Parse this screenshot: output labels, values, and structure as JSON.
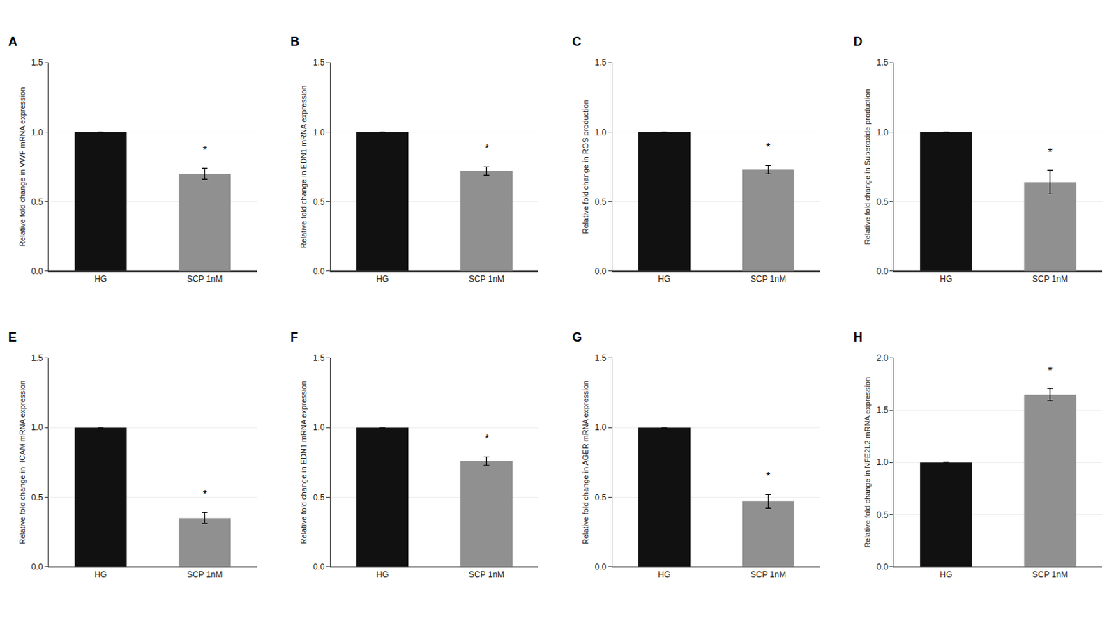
{
  "chart_data": [
    {
      "type": "bar",
      "title": "A",
      "y_label": "Relative fold change in VWF mRNA expression",
      "categories": [
        "HG",
        "SCP 1nM"
      ],
      "values": [
        1.0,
        0.7
      ],
      "errors": [
        0.0,
        0.04
      ],
      "colors": [
        "#111111",
        "#909090"
      ],
      "ylim": [
        0,
        1.5
      ],
      "yticks": [
        {
          "value": 0.0,
          "label": "0.0"
        },
        0.5,
        {
          "value": 1.0,
          "label": "1.0"
        },
        1.5
      ],
      "annotations": [
        {
          "text": "*",
          "category": "SCP 1nM"
        }
      ]
    },
    {
      "type": "bar",
      "title": "B",
      "y_label": "Relative fold change in EDN1 mRNA expression",
      "categories": [
        "HG",
        "SCP 1nM"
      ],
      "values": [
        1.0,
        0.72
      ],
      "errors": [
        0.0,
        0.03
      ],
      "colors": [
        "#111111",
        "#909090"
      ],
      "ylim": [
        0,
        1.5
      ],
      "yticks": [
        {
          "value": 0.0,
          "label": "0.0"
        },
        0.5,
        {
          "value": 1.0,
          "label": "1.0"
        },
        1.5
      ],
      "annotations": [
        {
          "text": "*",
          "category": "SCP 1nM"
        }
      ]
    },
    {
      "type": "bar",
      "title": "C",
      "y_label": "Relative fold change in ROS production",
      "categories": [
        "HG",
        "SCP 1nM"
      ],
      "values": [
        1.0,
        0.73
      ],
      "errors": [
        0.0,
        0.03
      ],
      "colors": [
        "#111111",
        "#909090"
      ],
      "ylim": [
        0,
        1.5
      ],
      "yticks": [
        {
          "value": 0.0,
          "label": "0.0"
        },
        0.5,
        {
          "value": 1.0,
          "label": "1.0"
        },
        1.5
      ],
      "annotations": [
        {
          "text": "*",
          "category": "SCP 1nM"
        }
      ]
    },
    {
      "type": "bar",
      "title": "D",
      "y_label": "Relative fold change in Superoxide production",
      "categories": [
        "HG",
        "SCP 1nM"
      ],
      "values": [
        1.0,
        0.64
      ],
      "errors": [
        0.0,
        0.085
      ],
      "colors": [
        "#111111",
        "#909090"
      ],
      "ylim": [
        0,
        1.5
      ],
      "yticks": [
        {
          "value": 0.0,
          "label": "0.0"
        },
        0.5,
        {
          "value": 1.0,
          "label": "1.0"
        },
        1.5
      ],
      "annotations": [
        {
          "text": "*",
          "category": "SCP 1nM"
        }
      ]
    },
    {
      "type": "bar",
      "title": "E",
      "y_label": "Relative fold change in  ICAM mRNA expression",
      "categories": [
        "HG",
        "SCP 1nM"
      ],
      "values": [
        1.0,
        0.35
      ],
      "errors": [
        0.0,
        0.04
      ],
      "colors": [
        "#111111",
        "#909090"
      ],
      "ylim": [
        0,
        1.5
      ],
      "yticks": [
        {
          "value": 0.0,
          "label": "0.0"
        },
        0.5,
        {
          "value": 1.0,
          "label": "1.0"
        },
        1.5
      ],
      "annotations": [
        {
          "text": "*",
          "category": "SCP 1nM"
        }
      ]
    },
    {
      "type": "bar",
      "title": "F",
      "y_label": "Relative fold change in EDN1 mRNA expression",
      "categories": [
        "HG",
        "SCP 1nM"
      ],
      "values": [
        1.0,
        0.76
      ],
      "errors": [
        0.0,
        0.03
      ],
      "colors": [
        "#111111",
        "#909090"
      ],
      "ylim": [
        0,
        1.5
      ],
      "yticks": [
        {
          "value": 0.0,
          "label": "0.0"
        },
        0.5,
        {
          "value": 1.0,
          "label": "1.0"
        },
        1.5
      ],
      "annotations": [
        {
          "text": "*",
          "category": "SCP 1nM"
        }
      ]
    },
    {
      "type": "bar",
      "title": "G",
      "y_label": "Relative fold change in AGER mRNA expression",
      "categories": [
        "HG",
        "SCP 1nM"
      ],
      "values": [
        1.0,
        0.47
      ],
      "errors": [
        0.0,
        0.05
      ],
      "colors": [
        "#111111",
        "#909090"
      ],
      "ylim": [
        0,
        1.5
      ],
      "yticks": [
        {
          "value": 0.0,
          "label": "0.0"
        },
        0.5,
        {
          "value": 1.0,
          "label": "1.0"
        },
        1.5
      ],
      "annotations": [
        {
          "text": "*",
          "category": "SCP 1nM"
        }
      ]
    },
    {
      "type": "bar",
      "title": "H",
      "y_label": "Relative fold change in NFE2L2 mRNA expression",
      "categories": [
        "HG",
        "SCP 1nM"
      ],
      "values": [
        1.0,
        1.65
      ],
      "errors": [
        0.0,
        0.06
      ],
      "colors": [
        "#111111",
        "#909090"
      ],
      "ylim": [
        0,
        2.0
      ],
      "yticks": [
        {
          "value": 0.0,
          "label": "0.0"
        },
        0.5,
        {
          "value": 1.0,
          "label": "1.0"
        },
        1.5,
        {
          "value": 2.0,
          "label": "2.0"
        }
      ],
      "annotations": [
        {
          "text": "*",
          "category": "SCP 1nM"
        }
      ]
    }
  ]
}
